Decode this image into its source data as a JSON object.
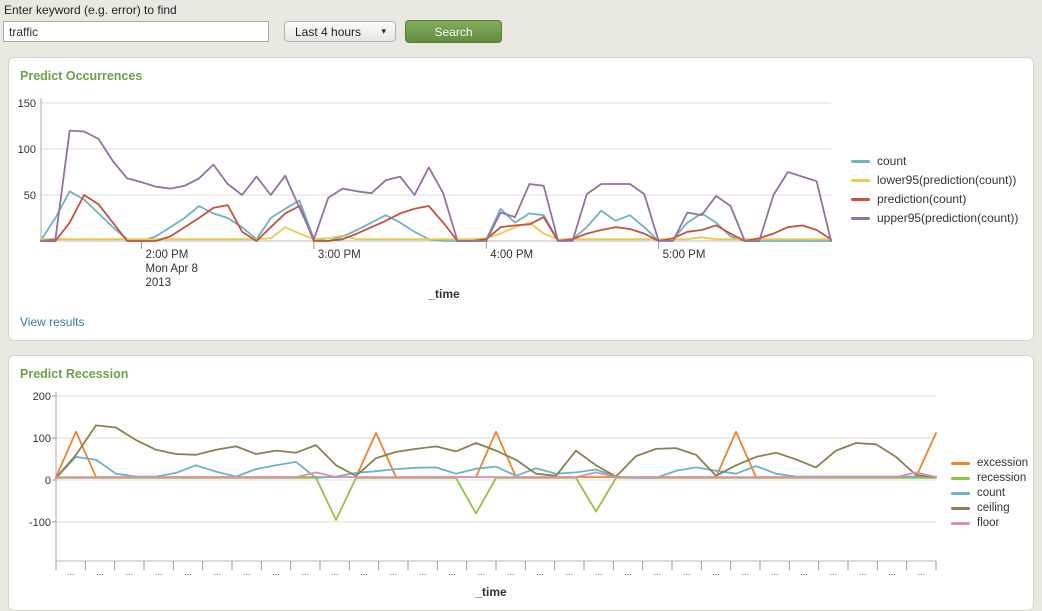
{
  "search_form": {
    "label": "Enter keyword (e.g. error) to find",
    "keyword_value": "traffic",
    "time_range_value": "Last 4 hours",
    "search_button": "Search"
  },
  "colors": {
    "page_background": "#EAE9E1",
    "panel_title_green": "#6EA04C",
    "link_blue": "#337CA8",
    "button_green": "#6D9A49"
  },
  "panels": [
    {
      "title": "Predict Occurrences",
      "link": "View results"
    },
    {
      "title": "Predict Recession"
    }
  ],
  "chart_data": [
    {
      "type": "line",
      "title": "Predict Occurrences",
      "xlabel": "_time",
      "ylabel": "",
      "ylim": [
        0,
        157
      ],
      "yticks": [
        50,
        100,
        150
      ],
      "grid": true,
      "legend_position": "right",
      "x_note": "time axis, 5-minute intervals, Mon Apr 8 2013, ~1:25 PM to 6:00 PM",
      "xticks": [
        {
          "index": 7,
          "lines": [
            "2:00 PM",
            "Mon Apr 8",
            "2013"
          ]
        },
        {
          "index": 19,
          "lines": [
            "3:00 PM"
          ]
        },
        {
          "index": 31,
          "lines": [
            "4:00 PM"
          ]
        },
        {
          "index": 43,
          "lines": [
            "5:00 PM"
          ]
        }
      ],
      "series": [
        {
          "name": "count",
          "color": "#6FB2C3",
          "values": [
            1,
            25,
            54,
            45,
            30,
            15,
            2,
            0,
            5,
            15,
            25,
            38,
            30,
            25,
            15,
            2,
            25,
            35,
            44,
            2,
            0,
            5,
            12,
            20,
            28,
            20,
            10,
            2,
            0,
            0,
            0,
            2,
            35,
            20,
            30,
            28,
            0,
            2,
            15,
            33,
            22,
            28,
            15,
            0,
            2,
            20,
            30,
            20,
            5,
            0,
            0,
            0,
            0,
            0,
            0,
            0
          ]
        },
        {
          "name": "lower95(prediction(count))",
          "color": "#E9CB4F",
          "values": [
            2,
            2,
            2,
            2,
            2,
            2,
            2,
            2,
            2,
            2,
            2,
            2,
            2,
            2,
            2,
            2,
            3,
            15,
            8,
            2,
            3,
            6,
            2,
            2,
            2,
            2,
            2,
            2,
            2,
            2,
            2,
            3,
            8,
            15,
            20,
            8,
            2,
            2,
            2,
            2,
            2,
            2,
            2,
            2,
            2,
            2,
            4,
            2,
            2,
            2,
            2,
            2,
            2,
            2,
            2,
            2
          ]
        },
        {
          "name": "prediction(count)",
          "color": "#C4523E",
          "values": [
            0,
            0,
            20,
            50,
            40,
            20,
            0,
            0,
            0,
            5,
            15,
            25,
            36,
            39,
            10,
            0,
            15,
            30,
            38,
            0,
            0,
            2,
            8,
            15,
            22,
            30,
            35,
            38,
            20,
            0,
            0,
            2,
            15,
            17,
            18,
            26,
            0,
            2,
            8,
            12,
            15,
            13,
            8,
            0,
            3,
            10,
            12,
            17,
            8,
            0,
            3,
            8,
            15,
            17,
            12,
            2
          ]
        },
        {
          "name": "upper95(prediction(count))",
          "color": "#9172A2",
          "values": [
            0,
            2,
            120,
            119,
            111,
            87,
            68,
            64,
            59,
            57,
            60,
            68,
            83,
            62,
            50,
            70,
            50,
            71,
            36,
            2,
            47,
            57,
            54,
            52,
            66,
            70,
            50,
            80,
            52,
            0,
            0,
            0,
            31,
            26,
            62,
            60,
            0,
            0,
            51,
            62,
            62,
            62,
            51,
            0,
            0,
            31,
            28,
            49,
            38,
            0,
            0,
            50,
            75,
            70,
            65,
            0
          ]
        }
      ]
    },
    {
      "type": "line",
      "title": "Predict Recession",
      "xlabel": "_time",
      "ylabel": "",
      "ylim": [
        -193,
        210
      ],
      "yticks": [
        200,
        100,
        0,
        -100
      ],
      "grid": true,
      "legend_position": "right",
      "xtick_label": "...",
      "xtick_count": 30,
      "series": [
        {
          "name": "excession",
          "color": "#EB8532",
          "values": [
            7,
            115,
            7,
            7,
            7,
            7,
            7,
            7,
            7,
            7,
            7,
            7,
            7,
            7,
            7,
            7,
            112,
            7,
            7,
            7,
            7,
            7,
            115,
            7,
            7,
            7,
            7,
            7,
            7,
            7,
            7,
            7,
            7,
            7,
            115,
            7,
            7,
            7,
            7,
            7,
            7,
            7,
            7,
            7,
            112
          ]
        },
        {
          "name": "recession",
          "color": "#94C244",
          "values": [
            5,
            5,
            5,
            5,
            5,
            5,
            5,
            5,
            5,
            5,
            5,
            5,
            5,
            5,
            -95,
            5,
            5,
            5,
            5,
            5,
            5,
            -80,
            5,
            5,
            5,
            5,
            5,
            -75,
            5,
            5,
            5,
            5,
            5,
            5,
            5,
            5,
            5,
            5,
            5,
            5,
            5,
            5,
            5,
            5,
            5
          ]
        },
        {
          "name": "count",
          "color": "#6FB2C3",
          "values": [
            5,
            55,
            48,
            15,
            8,
            8,
            17,
            35,
            20,
            8,
            26,
            35,
            43,
            5,
            8,
            17,
            21,
            26,
            29,
            30,
            15,
            27,
            32,
            10,
            28,
            15,
            18,
            25,
            8,
            5,
            5,
            22,
            30,
            22,
            15,
            33,
            15,
            8,
            8,
            8,
            8,
            8,
            8,
            8,
            8
          ]
        },
        {
          "name": "ceiling",
          "color": "#8D8050",
          "values": [
            5,
            60,
            130,
            125,
            95,
            72,
            62,
            60,
            72,
            80,
            62,
            70,
            65,
            83,
            35,
            10,
            52,
            67,
            74,
            80,
            68,
            88,
            70,
            48,
            15,
            10,
            70,
            35,
            8,
            57,
            74,
            76,
            60,
            10,
            35,
            55,
            65,
            49,
            30,
            70,
            88,
            85,
            55,
            12,
            7
          ]
        },
        {
          "name": "floor",
          "color": "#DA8EB6",
          "values": [
            7,
            7,
            7,
            7,
            7,
            7,
            7,
            7,
            7,
            7,
            7,
            7,
            7,
            18,
            7,
            7,
            7,
            7,
            7,
            7,
            7,
            7,
            7,
            7,
            7,
            7,
            7,
            18,
            7,
            7,
            7,
            7,
            7,
            7,
            7,
            7,
            7,
            7,
            7,
            7,
            7,
            7,
            7,
            18,
            7
          ]
        }
      ]
    }
  ]
}
